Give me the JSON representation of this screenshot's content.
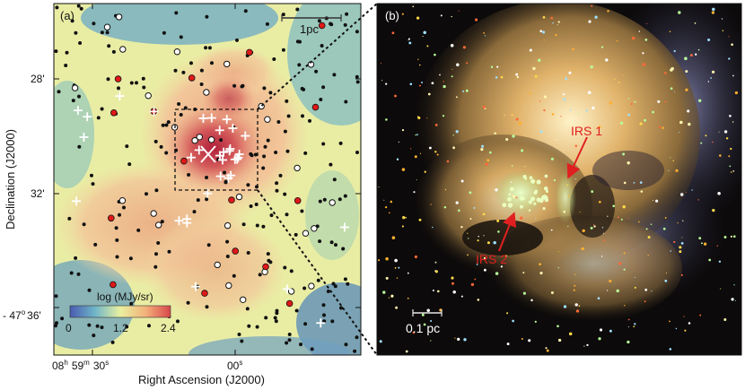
{
  "panel_a": {
    "label": "(a)",
    "scalebar_label": "1pc",
    "y_axis_label": "Declination (J2000)",
    "x_axis_label": "Right Ascension (J2000)",
    "y_ticks": [
      "28'",
      "32'",
      "36'"
    ],
    "y_tick_prefix": "- 47",
    "y_tick_degree": "o",
    "x_tick_left": {
      "h": "08",
      "h_unit": "h",
      "m": "59",
      "m_unit": "m",
      "s": "30",
      "s_unit": "s"
    },
    "x_tick_right": {
      "s": "00",
      "s_unit": "s"
    },
    "colorbar": {
      "title": "log (MJy/sr)",
      "ticks": [
        "0",
        "1.2",
        "2.4"
      ],
      "colors": [
        "#4a5bb0",
        "#6fb6c8",
        "#e8f0a0",
        "#f3b27a",
        "#d8464a"
      ]
    },
    "map_colors": {
      "low": "#7fbac4",
      "mid": "#eef0a6",
      "high": "#cf3c48"
    }
  },
  "panel_b": {
    "label": "(b)",
    "annotation_1": "IRS 1",
    "annotation_2": "IRS 2",
    "scalebar_label": "0.1 pc",
    "annotation_color": "#e02020"
  }
}
